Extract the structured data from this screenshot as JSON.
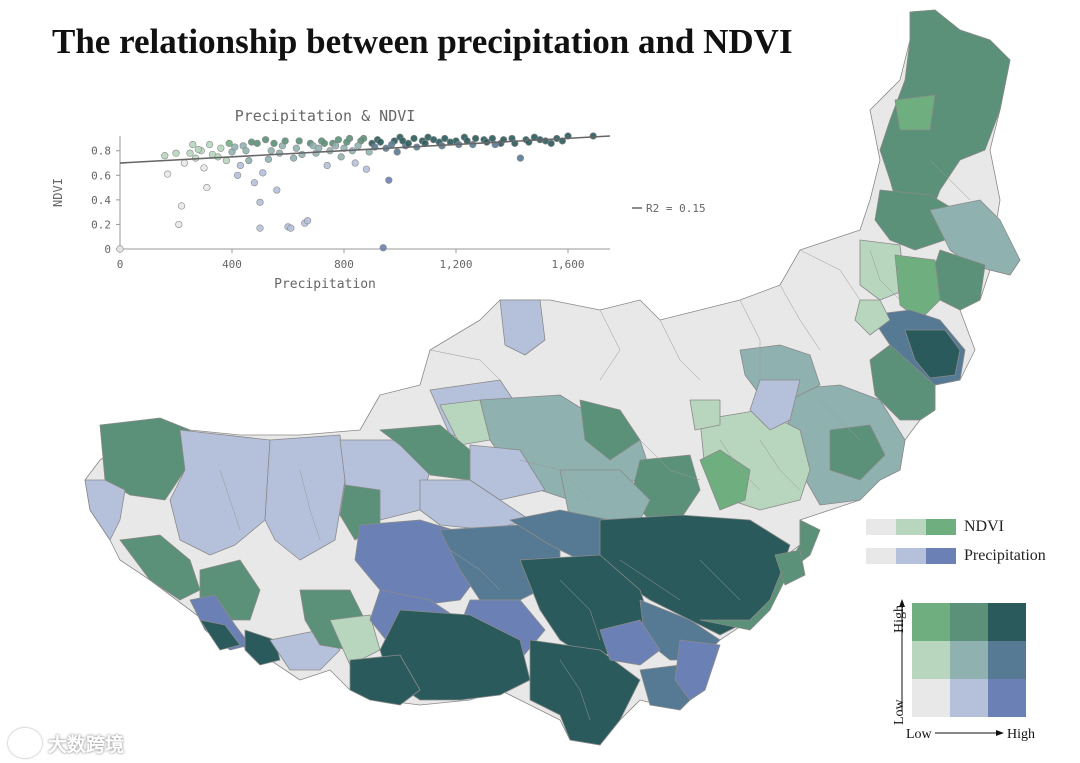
{
  "title": "The relationship between precipitation and NDVI",
  "colors": {
    "c00": "#e8e8e8",
    "c10": "#b5c0da",
    "c20": "#6b81b5",
    "c01": "#b8d6be",
    "c11": "#8fb1b0",
    "c21": "#567a93",
    "c02": "#6fae7f",
    "c12": "#5a9178",
    "c22": "#2a5a5b",
    "border": "#8a8a8a"
  },
  "legend": {
    "ndvi_label": "NDVI",
    "precip_label": "Precipitation",
    "axis_low": "Low",
    "axis_high": "High",
    "y_low": "Low",
    "y_high": "High"
  },
  "watermark": {
    "text": "大数跨境"
  },
  "chart_data": {
    "type": "scatter",
    "title": "Precipitation & NDVI",
    "xlabel": "Precipitation",
    "ylabel": "NDVI",
    "xlim": [
      0,
      1750
    ],
    "ylim": [
      0,
      0.92
    ],
    "x_ticks": [
      0,
      400,
      800,
      1200,
      1600
    ],
    "x_tick_labels": [
      "0",
      "400",
      "800",
      "1,200",
      "1,600"
    ],
    "y_ticks": [
      0,
      0.2,
      0.4,
      0.6,
      0.8
    ],
    "y_tick_labels": [
      "0",
      "0.2",
      "0.4",
      "0.6",
      "0.8"
    ],
    "trendline": {
      "x": [
        0,
        1750
      ],
      "y": [
        0.7,
        0.92
      ],
      "label": "R2 = 0.15"
    },
    "points": [
      [
        160,
        0.76
      ],
      [
        170,
        0.61
      ],
      [
        200,
        0.78
      ],
      [
        210,
        0.2
      ],
      [
        220,
        0.35
      ],
      [
        250,
        0.78
      ],
      [
        270,
        0.74
      ],
      [
        290,
        0.8
      ],
      [
        300,
        0.66
      ],
      [
        310,
        0.5
      ],
      [
        330,
        0.77
      ],
      [
        360,
        0.82
      ],
      [
        380,
        0.72
      ],
      [
        400,
        0.79
      ],
      [
        420,
        0.6
      ],
      [
        440,
        0.84
      ],
      [
        460,
        0.72
      ],
      [
        480,
        0.54
      ],
      [
        490,
        0.86
      ],
      [
        500,
        0.38
      ],
      [
        500,
        0.17
      ],
      [
        510,
        0.62
      ],
      [
        520,
        0.89
      ],
      [
        540,
        0.8
      ],
      [
        560,
        0.48
      ],
      [
        580,
        0.84
      ],
      [
        600,
        0.18
      ],
      [
        610,
        0.17
      ],
      [
        620,
        0.74
      ],
      [
        640,
        0.88
      ],
      [
        660,
        0.21
      ],
      [
        670,
        0.23
      ],
      [
        680,
        0.86
      ],
      [
        700,
        0.78
      ],
      [
        720,
        0.88
      ],
      [
        740,
        0.68
      ],
      [
        760,
        0.86
      ],
      [
        780,
        0.89
      ],
      [
        800,
        0.82
      ],
      [
        820,
        0.9
      ],
      [
        840,
        0.7
      ],
      [
        860,
        0.88
      ],
      [
        880,
        0.65
      ],
      [
        900,
        0.86
      ],
      [
        920,
        0.89
      ],
      [
        940,
        0.01
      ],
      [
        960,
        0.56
      ],
      [
        980,
        0.88
      ],
      [
        1000,
        0.91
      ],
      [
        1020,
        0.84
      ],
      [
        1050,
        0.9
      ],
      [
        1080,
        0.88
      ],
      [
        1100,
        0.91
      ],
      [
        1140,
        0.87
      ],
      [
        1160,
        0.9
      ],
      [
        1200,
        0.88
      ],
      [
        1230,
        0.91
      ],
      [
        1260,
        0.85
      ],
      [
        1300,
        0.89
      ],
      [
        1330,
        0.9
      ],
      [
        1360,
        0.86
      ],
      [
        1400,
        0.9
      ],
      [
        1430,
        0.74
      ],
      [
        1450,
        0.89
      ],
      [
        1480,
        0.91
      ],
      [
        1520,
        0.88
      ],
      [
        1560,
        0.9
      ],
      [
        1600,
        0.92
      ],
      [
        1690,
        0.92
      ],
      [
        0,
        0.0
      ],
      [
        230,
        0.7
      ],
      [
        260,
        0.85
      ],
      [
        280,
        0.81
      ],
      [
        320,
        0.85
      ],
      [
        350,
        0.75
      ],
      [
        390,
        0.86
      ],
      [
        410,
        0.83
      ],
      [
        430,
        0.68
      ],
      [
        450,
        0.8
      ],
      [
        470,
        0.87
      ],
      [
        530,
        0.73
      ],
      [
        550,
        0.86
      ],
      [
        570,
        0.78
      ],
      [
        590,
        0.88
      ],
      [
        630,
        0.82
      ],
      [
        650,
        0.77
      ],
      [
        690,
        0.84
      ],
      [
        710,
        0.82
      ],
      [
        730,
        0.86
      ],
      [
        750,
        0.8
      ],
      [
        770,
        0.84
      ],
      [
        790,
        0.75
      ],
      [
        810,
        0.87
      ],
      [
        830,
        0.8
      ],
      [
        850,
        0.84
      ],
      [
        870,
        0.9
      ],
      [
        890,
        0.79
      ],
      [
        910,
        0.83
      ],
      [
        930,
        0.87
      ],
      [
        950,
        0.82
      ],
      [
        970,
        0.85
      ],
      [
        990,
        0.79
      ],
      [
        1010,
        0.88
      ],
      [
        1030,
        0.86
      ],
      [
        1060,
        0.83
      ],
      [
        1090,
        0.86
      ],
      [
        1120,
        0.89
      ],
      [
        1150,
        0.84
      ],
      [
        1180,
        0.87
      ],
      [
        1210,
        0.85
      ],
      [
        1240,
        0.88
      ],
      [
        1270,
        0.9
      ],
      [
        1310,
        0.87
      ],
      [
        1340,
        0.85
      ],
      [
        1370,
        0.89
      ],
      [
        1410,
        0.86
      ],
      [
        1460,
        0.87
      ],
      [
        1500,
        0.89
      ],
      [
        1540,
        0.86
      ],
      [
        1580,
        0.88
      ]
    ]
  }
}
